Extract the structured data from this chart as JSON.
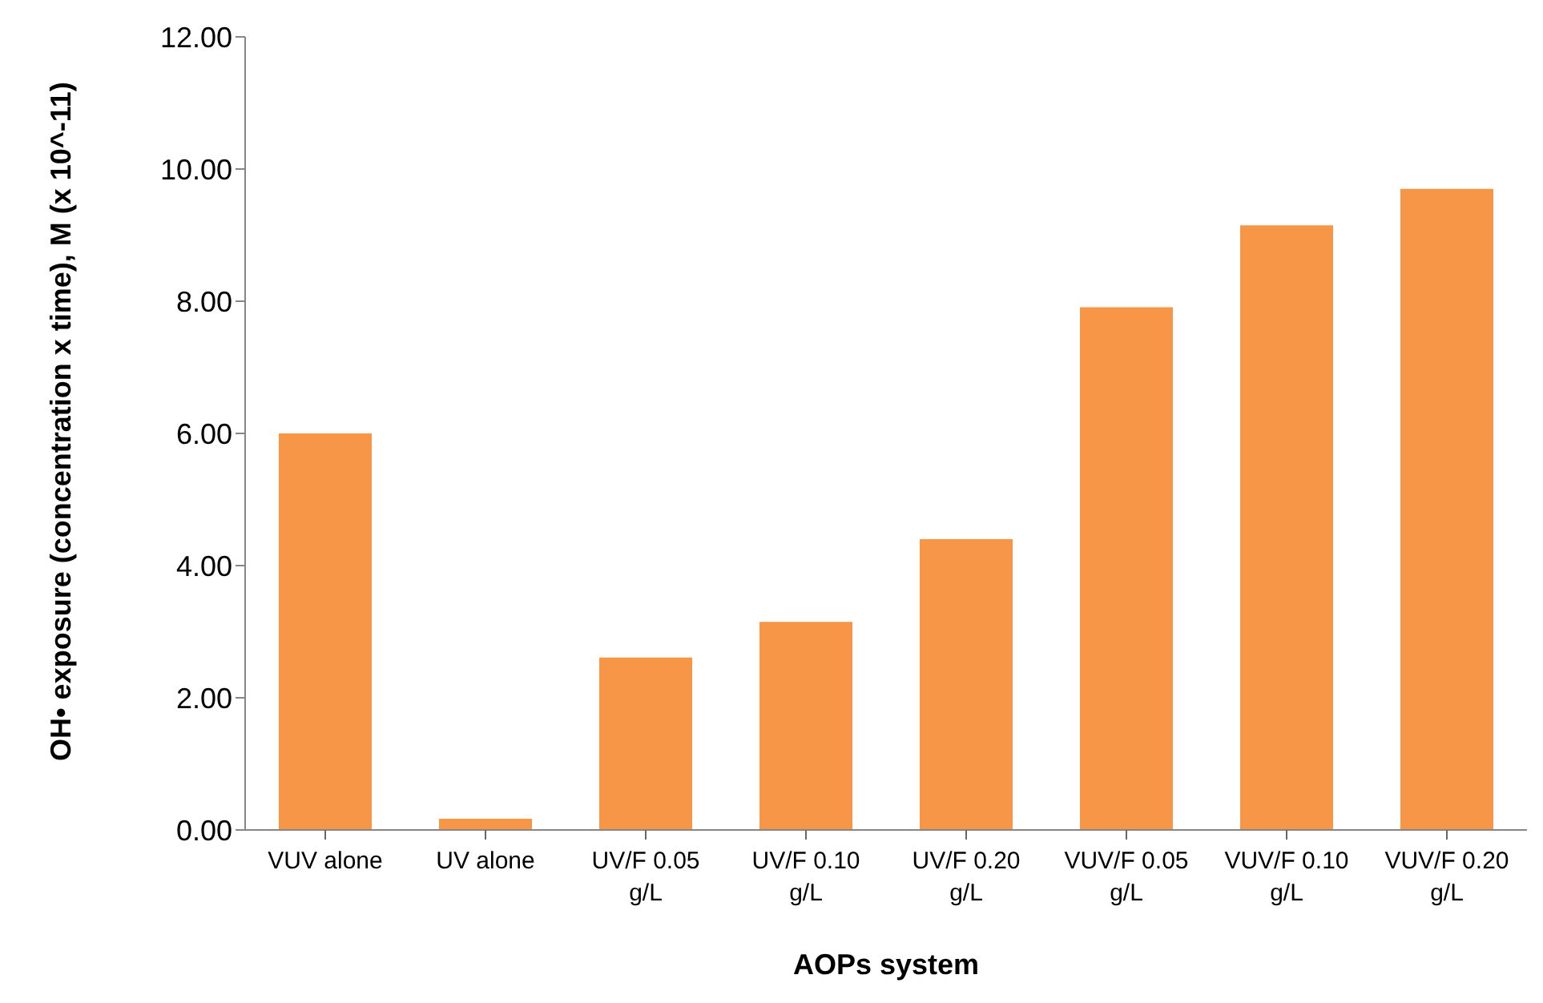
{
  "chart_data": {
    "type": "bar",
    "xlabel": "AOPs system",
    "ylabel": "OH• exposure (concentration x time), M (x 10^-11)",
    "categories": [
      "VUV alone",
      "UV alone",
      "UV/F 0.05 g/L",
      "UV/F 0.10 g/L",
      "UV/F 0.20 g/L",
      "VUV/F 0.05 g/L",
      "VUV/F 0.10 g/L",
      "VUV/F 0.20 g/L"
    ],
    "values": [
      6.0,
      0.17,
      2.61,
      3.15,
      4.4,
      7.91,
      9.15,
      9.7
    ],
    "color": "#f79646",
    "ylim": [
      0,
      12
    ],
    "yticks": [
      {
        "value": 0,
        "label": "0.00"
      },
      {
        "value": 2,
        "label": "2.00"
      },
      {
        "value": 4,
        "label": "4.00"
      },
      {
        "value": 6,
        "label": "6.00"
      },
      {
        "value": 8,
        "label": "8.00"
      },
      {
        "value": 10,
        "label": "10.00"
      },
      {
        "value": 12,
        "label": "12.00"
      }
    ],
    "grid": false,
    "legend": false
  }
}
